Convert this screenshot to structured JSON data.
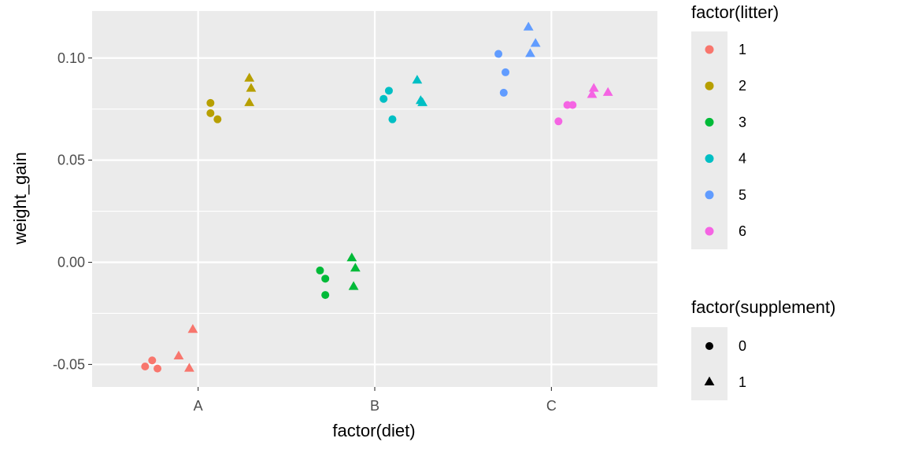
{
  "chart_data": {
    "type": "scatter",
    "title": "",
    "xlabel": "factor(diet)",
    "ylabel": "weight_gain",
    "categories": [
      "A",
      "B",
      "C"
    ],
    "ylim": [
      -0.061,
      0.123
    ],
    "y_ticks": [
      {
        "value": -0.05,
        "label": "-0.05"
      },
      {
        "value": 0.0,
        "label": "0.00"
      },
      {
        "value": 0.05,
        "label": "0.05"
      },
      {
        "value": 0.1,
        "label": "0.10"
      }
    ],
    "grid": true,
    "legends": [
      {
        "title": "factor(litter)",
        "entries": [
          {
            "label": "1",
            "color": "#F8766D"
          },
          {
            "label": "2",
            "color": "#B79F00"
          },
          {
            "label": "3",
            "color": "#00BA38"
          },
          {
            "label": "4",
            "color": "#00BFC4"
          },
          {
            "label": "5",
            "color": "#619CFF"
          },
          {
            "label": "6",
            "color": "#F564E3"
          }
        ]
      },
      {
        "title": "factor(supplement)",
        "entries": [
          {
            "label": "0",
            "shape": "circle"
          },
          {
            "label": "1",
            "shape": "triangle"
          }
        ]
      }
    ],
    "points": [
      {
        "x": 0.7,
        "y": -0.051,
        "litter": "1",
        "supplement": "0"
      },
      {
        "x": 0.74,
        "y": -0.048,
        "litter": "1",
        "supplement": "0"
      },
      {
        "x": 0.77,
        "y": -0.052,
        "litter": "1",
        "supplement": "0"
      },
      {
        "x": 0.89,
        "y": -0.046,
        "litter": "1",
        "supplement": "1"
      },
      {
        "x": 0.95,
        "y": -0.052,
        "litter": "1",
        "supplement": "1"
      },
      {
        "x": 0.97,
        "y": -0.033,
        "litter": "1",
        "supplement": "1"
      },
      {
        "x": 1.07,
        "y": 0.078,
        "litter": "2",
        "supplement": "0"
      },
      {
        "x": 1.07,
        "y": 0.073,
        "litter": "2",
        "supplement": "0"
      },
      {
        "x": 1.11,
        "y": 0.07,
        "litter": "2",
        "supplement": "0"
      },
      {
        "x": 1.29,
        "y": 0.09,
        "litter": "2",
        "supplement": "1"
      },
      {
        "x": 1.3,
        "y": 0.085,
        "litter": "2",
        "supplement": "1"
      },
      {
        "x": 1.29,
        "y": 0.078,
        "litter": "2",
        "supplement": "1"
      },
      {
        "x": 1.69,
        "y": -0.004,
        "litter": "3",
        "supplement": "0"
      },
      {
        "x": 1.72,
        "y": -0.008,
        "litter": "3",
        "supplement": "0"
      },
      {
        "x": 1.72,
        "y": -0.016,
        "litter": "3",
        "supplement": "0"
      },
      {
        "x": 1.87,
        "y": 0.002,
        "litter": "3",
        "supplement": "1"
      },
      {
        "x": 1.89,
        "y": -0.003,
        "litter": "3",
        "supplement": "1"
      },
      {
        "x": 1.88,
        "y": -0.012,
        "litter": "3",
        "supplement": "1"
      },
      {
        "x": 2.05,
        "y": 0.08,
        "litter": "4",
        "supplement": "0"
      },
      {
        "x": 2.08,
        "y": 0.084,
        "litter": "4",
        "supplement": "0"
      },
      {
        "x": 2.1,
        "y": 0.07,
        "litter": "4",
        "supplement": "0"
      },
      {
        "x": 2.24,
        "y": 0.089,
        "litter": "4",
        "supplement": "1"
      },
      {
        "x": 2.26,
        "y": 0.079,
        "litter": "4",
        "supplement": "1"
      },
      {
        "x": 2.27,
        "y": 0.078,
        "litter": "4",
        "supplement": "1"
      },
      {
        "x": 2.7,
        "y": 0.102,
        "litter": "5",
        "supplement": "0"
      },
      {
        "x": 2.74,
        "y": 0.093,
        "litter": "5",
        "supplement": "0"
      },
      {
        "x": 2.73,
        "y": 0.083,
        "litter": "5",
        "supplement": "0"
      },
      {
        "x": 2.87,
        "y": 0.115,
        "litter": "5",
        "supplement": "1"
      },
      {
        "x": 2.91,
        "y": 0.107,
        "litter": "5",
        "supplement": "1"
      },
      {
        "x": 2.88,
        "y": 0.102,
        "litter": "5",
        "supplement": "1"
      },
      {
        "x": 3.04,
        "y": 0.069,
        "litter": "6",
        "supplement": "0"
      },
      {
        "x": 3.09,
        "y": 0.077,
        "litter": "6",
        "supplement": "0"
      },
      {
        "x": 3.12,
        "y": 0.077,
        "litter": "6",
        "supplement": "0"
      },
      {
        "x": 3.24,
        "y": 0.085,
        "litter": "6",
        "supplement": "1"
      },
      {
        "x": 3.23,
        "y": 0.082,
        "litter": "6",
        "supplement": "1"
      },
      {
        "x": 3.32,
        "y": 0.083,
        "litter": "6",
        "supplement": "1"
      }
    ]
  }
}
